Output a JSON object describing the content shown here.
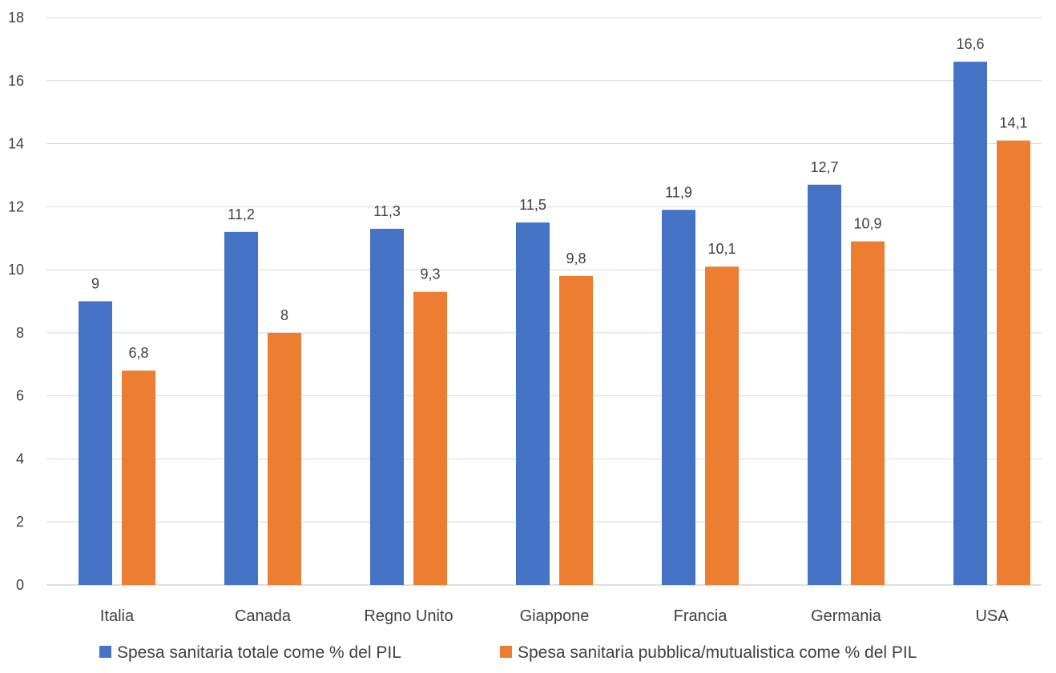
{
  "chart_data": {
    "type": "bar",
    "title": "",
    "xlabel": "",
    "ylabel": "",
    "categories": [
      "Italia",
      "Canada",
      "Regno Unito",
      "Giappone",
      "Francia",
      "Germania",
      "USA"
    ],
    "series": [
      {
        "name": "Spesa sanitaria totale come % del PIL",
        "color": "#4472C4",
        "values": [
          9,
          11.2,
          11.3,
          11.5,
          11.9,
          12.7,
          16.6
        ],
        "labels": [
          "9",
          "11,2",
          "11,3",
          "11,5",
          "11,9",
          "12,7",
          "16,6"
        ]
      },
      {
        "name": "Spesa sanitaria pubblica/mutualistica come % del PIL",
        "color": "#ED7D31",
        "values": [
          6.8,
          8,
          9.3,
          9.8,
          10.1,
          10.9,
          14.1
        ],
        "labels": [
          "6,8",
          "8",
          "9,3",
          "9,8",
          "10,1",
          "10,9",
          "14,1"
        ]
      }
    ],
    "ylim": [
      0,
      18
    ],
    "yticks": [
      "0",
      "2",
      "4",
      "6",
      "8",
      "10",
      "12",
      "14",
      "16",
      "18"
    ],
    "grid": true,
    "legend_position": "bottom"
  }
}
